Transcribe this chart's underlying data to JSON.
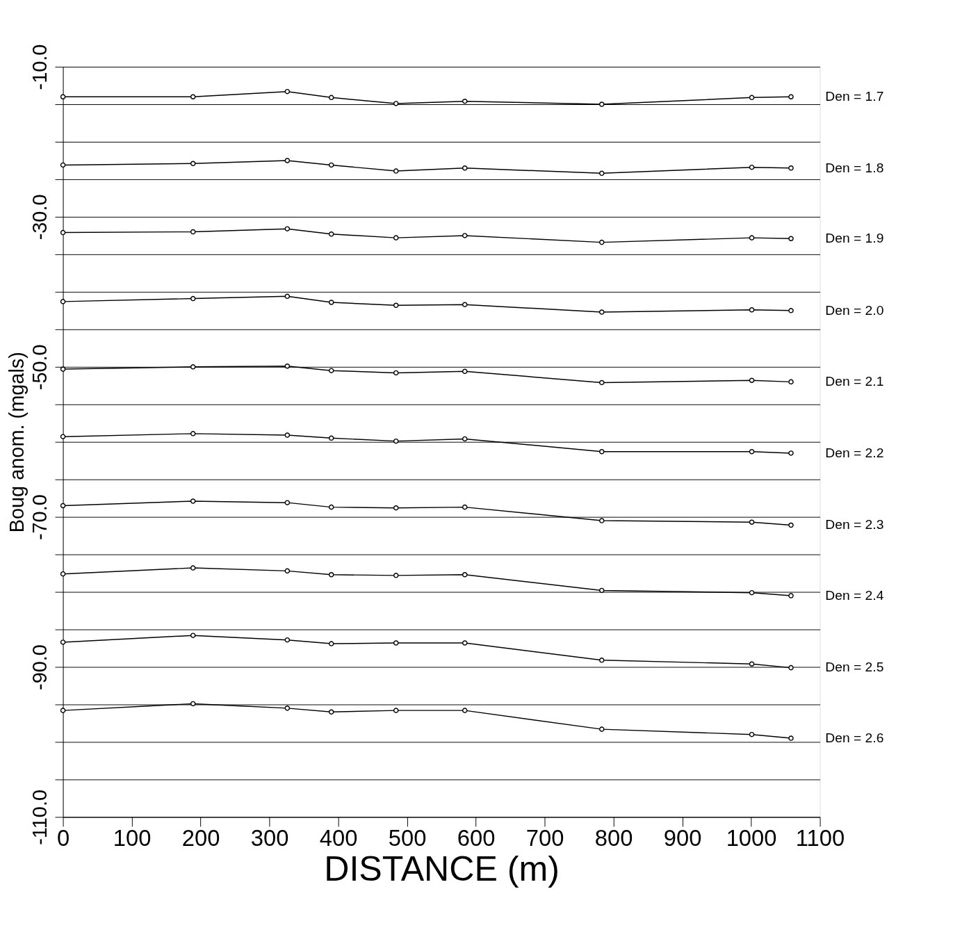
{
  "chart_data": {
    "type": "line",
    "xlabel": "DISTANCE (m)",
    "ylabel": "Boug anom. (mgals)",
    "x": [
      0,
      189,
      326,
      390,
      484,
      584,
      783,
      1001,
      1058
    ],
    "xlim": [
      0,
      1100
    ],
    "xticks": [
      0,
      100,
      200,
      300,
      400,
      500,
      600,
      700,
      800,
      900,
      1000,
      1100
    ],
    "ylim": [
      -110,
      -10
    ],
    "yticks": [
      {
        "value": -10,
        "label": "-10.0"
      },
      {
        "value": -15,
        "label": null
      },
      {
        "value": -20,
        "label": null
      },
      {
        "value": -25,
        "label": null
      },
      {
        "value": -30,
        "label": "-30.0"
      },
      {
        "value": -35,
        "label": null
      },
      {
        "value": -40,
        "label": null
      },
      {
        "value": -45,
        "label": null
      },
      {
        "value": -50,
        "label": "-50.0"
      },
      {
        "value": -55,
        "label": null
      },
      {
        "value": -60,
        "label": null
      },
      {
        "value": -65,
        "label": null
      },
      {
        "value": -70,
        "label": "-70.0"
      },
      {
        "value": -75,
        "label": null
      },
      {
        "value": -80,
        "label": null
      },
      {
        "value": -85,
        "label": null
      },
      {
        "value": -90,
        "label": "-90.0"
      },
      {
        "value": -95,
        "label": null
      },
      {
        "value": -100,
        "label": null
      },
      {
        "value": -105,
        "label": null
      },
      {
        "value": -110,
        "label": "-110.0"
      }
    ],
    "grid": "y",
    "marker": "circle",
    "line_style": "solid",
    "series": [
      {
        "name": "Den = 1.7",
        "color": "#000000",
        "values": [
          -14.0,
          -14.0,
          -13.3,
          -14.1,
          -14.9,
          -14.6,
          -15.0,
          -14.1,
          -14.0
        ]
      },
      {
        "name": "Den = 1.8",
        "color": "#000000",
        "values": [
          -23.1,
          -22.9,
          -22.5,
          -23.1,
          -23.9,
          -23.5,
          -24.2,
          -23.4,
          -23.5
        ]
      },
      {
        "name": "Den = 1.9",
        "color": "#000000",
        "values": [
          -32.1,
          -32.0,
          -31.6,
          -32.3,
          -32.8,
          -32.5,
          -33.4,
          -32.8,
          -32.9
        ]
      },
      {
        "name": "Den = 2.0",
        "color": "#000000",
        "values": [
          -41.3,
          -40.9,
          -40.6,
          -41.4,
          -41.8,
          -41.7,
          -42.7,
          -42.4,
          -42.5
        ]
      },
      {
        "name": "Den = 2.1",
        "color": "#000000",
        "values": [
          -50.3,
          -50.0,
          -49.9,
          -50.5,
          -50.8,
          -50.6,
          -52.1,
          -51.8,
          -52.0
        ]
      },
      {
        "name": "Den = 2.2",
        "color": "#000000",
        "values": [
          -59.3,
          -58.9,
          -59.1,
          -59.5,
          -59.9,
          -59.6,
          -61.3,
          -61.3,
          -61.5
        ]
      },
      {
        "name": "Den = 2.3",
        "color": "#000000",
        "values": [
          -68.5,
          -67.9,
          -68.1,
          -68.7,
          -68.8,
          -68.7,
          -70.5,
          -70.7,
          -71.1
        ]
      },
      {
        "name": "Den = 2.4",
        "color": "#000000",
        "values": [
          -77.6,
          -76.8,
          -77.2,
          -77.7,
          -77.8,
          -77.7,
          -79.8,
          -80.1,
          -80.5
        ]
      },
      {
        "name": "Den = 2.5",
        "color": "#000000",
        "values": [
          -86.7,
          -85.8,
          -86.4,
          -86.9,
          -86.8,
          -86.8,
          -89.1,
          -89.6,
          -90.1
        ]
      },
      {
        "name": "Den = 2.6",
        "color": "#000000",
        "values": [
          -95.8,
          -94.9,
          -95.5,
          -96.0,
          -95.8,
          -95.8,
          -98.3,
          -99.0,
          -99.5
        ]
      }
    ]
  }
}
